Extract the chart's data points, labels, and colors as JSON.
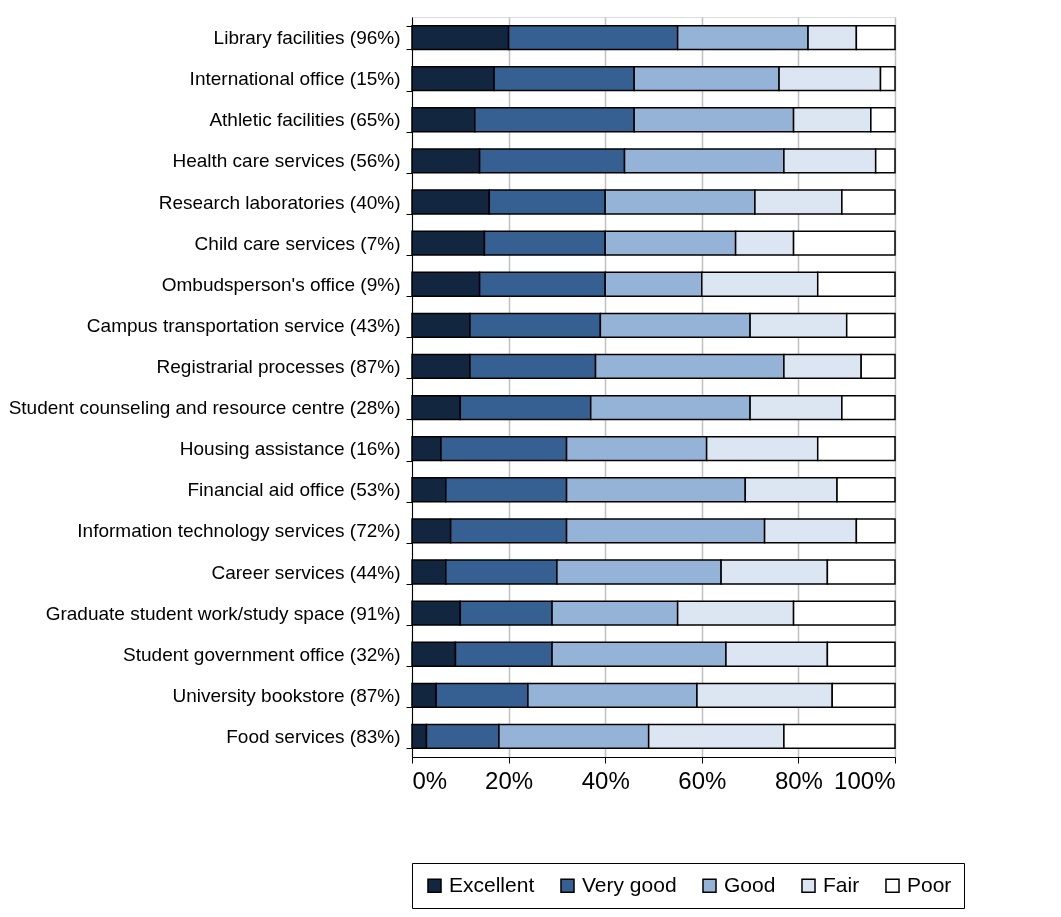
{
  "chart_data": {
    "type": "bar",
    "orientation": "horizontal",
    "stacked": true,
    "categories": [
      "Library facilities (96%)",
      "International office (15%)",
      "Athletic facilities (65%)",
      "Health care services (56%)",
      "Research laboratories (40%)",
      "Child care services (7%)",
      "Ombudsperson's office (9%)",
      "Campus transportation service (43%)",
      "Registrarial processes (87%)",
      "Student counseling and resource centre (28%)",
      "Housing assistance (16%)",
      "Financial aid office (53%)",
      "Information technology services (72%)",
      "Career services (44%)",
      "Graduate student work/study space (91%)",
      "Student government office (32%)",
      "University bookstore (87%)",
      "Food services (83%)"
    ],
    "series": [
      {
        "name": "Excellent",
        "color": "#13263f",
        "values": [
          20,
          17,
          13,
          14,
          16,
          15,
          14,
          12,
          12,
          10,
          6,
          7,
          8,
          7,
          10,
          9,
          5,
          3
        ]
      },
      {
        "name": "Very good",
        "color": "#376092",
        "values": [
          35,
          29,
          33,
          30,
          24,
          25,
          26,
          27,
          26,
          27,
          26,
          25,
          24,
          23,
          19,
          20,
          19,
          15
        ]
      },
      {
        "name": "Good",
        "color": "#95b3d7",
        "values": [
          27,
          30,
          33,
          33,
          31,
          27,
          20,
          31,
          39,
          33,
          29,
          37,
          41,
          34,
          26,
          36,
          35,
          31
        ]
      },
      {
        "name": "Fair",
        "color": "#dce6f2",
        "values": [
          10,
          21,
          16,
          19,
          18,
          12,
          24,
          20,
          16,
          19,
          23,
          19,
          19,
          22,
          24,
          21,
          28,
          28
        ]
      },
      {
        "name": "Poor",
        "color": "#ffffff",
        "values": [
          8,
          3,
          5,
          4,
          11,
          21,
          16,
          10,
          7,
          11,
          16,
          12,
          8,
          14,
          21,
          14,
          13,
          23
        ]
      }
    ],
    "xlim": [
      0,
      100
    ],
    "xticks": [
      {
        "value": 0,
        "label": "0%"
      },
      {
        "value": 20,
        "label": "20%"
      },
      {
        "value": 40,
        "label": "40%"
      },
      {
        "value": 60,
        "label": "60%"
      },
      {
        "value": 80,
        "label": "80%"
      },
      {
        "value": 100,
        "label": "100%"
      }
    ],
    "grid": "x",
    "legend": "bottom"
  }
}
